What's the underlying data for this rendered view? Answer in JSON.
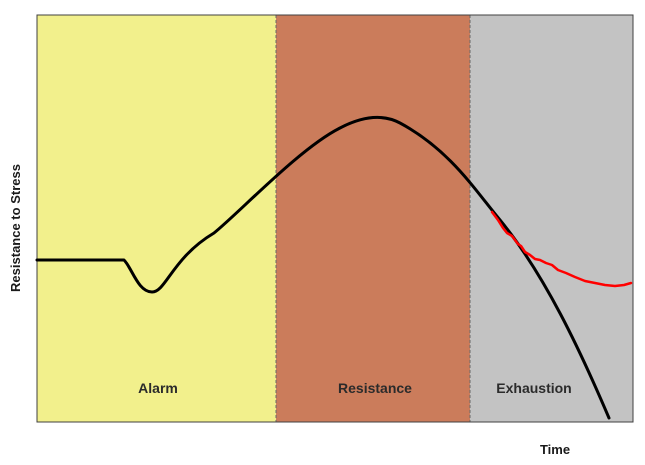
{
  "diagram": {
    "y_axis_label": "Resistance to Stress",
    "x_axis_label": "Time",
    "phases": [
      {
        "name": "Alarm",
        "color": "#f2f08c"
      },
      {
        "name": "Resistance",
        "color": "#cb7c5b"
      },
      {
        "name": "Exhaustion",
        "color": "#c3c3c3"
      }
    ],
    "curve_colors": {
      "main": "#000000",
      "alternate": "#ff0000"
    }
  }
}
